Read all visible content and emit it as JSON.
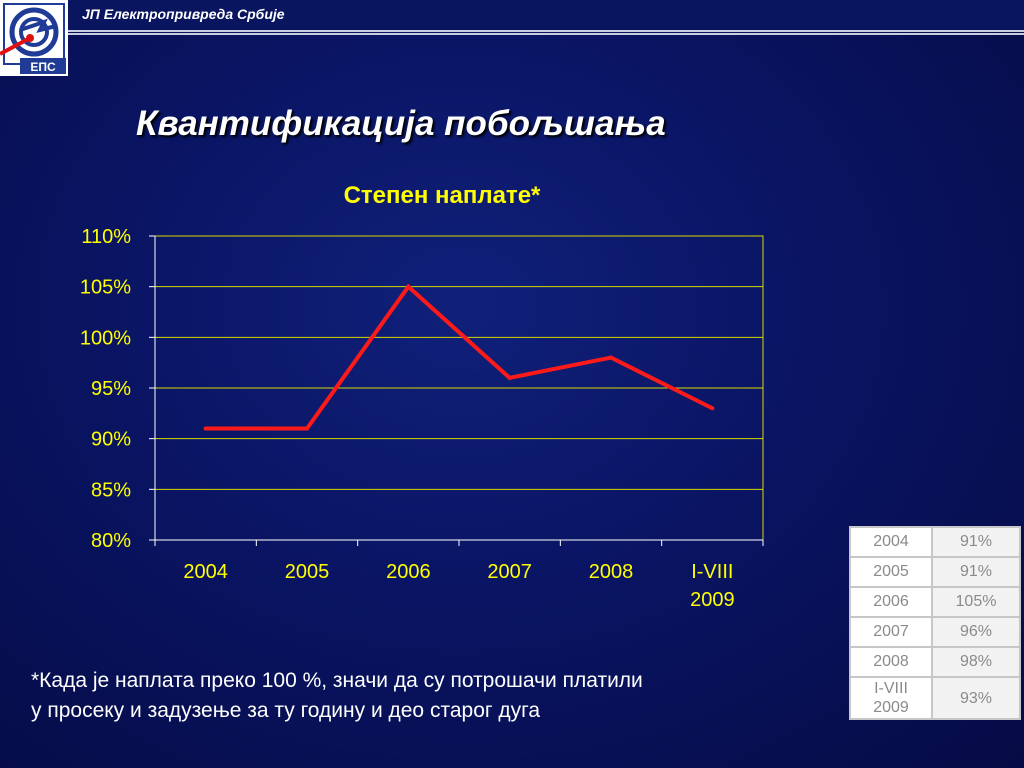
{
  "header": {
    "company": "ЈП Електропривреда Србије",
    "logo_text": "ЕПС"
  },
  "slide": {
    "title": "Квантификација побољшања"
  },
  "chart_data": {
    "type": "line",
    "title": "Степен наплате*",
    "categories": [
      "2004",
      "2005",
      "2006",
      "2007",
      "2008",
      "I-VIII 2009"
    ],
    "series": [
      {
        "values": [
          91,
          91,
          105,
          96,
          98,
          93
        ],
        "color": "#ff1a1a"
      }
    ],
    "ylim": [
      80,
      110
    ],
    "yticks": [
      "80%",
      "85%",
      "90%",
      "95%",
      "100%",
      "105%",
      "110%"
    ],
    "xlabel": "",
    "ylabel": "",
    "grid": true,
    "colors": {
      "grid": "#d8d800",
      "axis": "#ffffff",
      "tick_label": "#ffff00"
    }
  },
  "summary_table": {
    "rows": [
      {
        "year": "2004",
        "value": "91%"
      },
      {
        "year": "2005",
        "value": "91%"
      },
      {
        "year": "2006",
        "value": "105%"
      },
      {
        "year": "2007",
        "value": "96%"
      },
      {
        "year": "2008",
        "value": "98%"
      },
      {
        "year": "I-VIII 2009",
        "value": "93%"
      }
    ]
  },
  "footnote": {
    "line1": "*Када је наплата преко 100 %, значи да су потрошачи платили",
    "line2": "у просеку и задузење за ту годину и део старог дуга"
  }
}
